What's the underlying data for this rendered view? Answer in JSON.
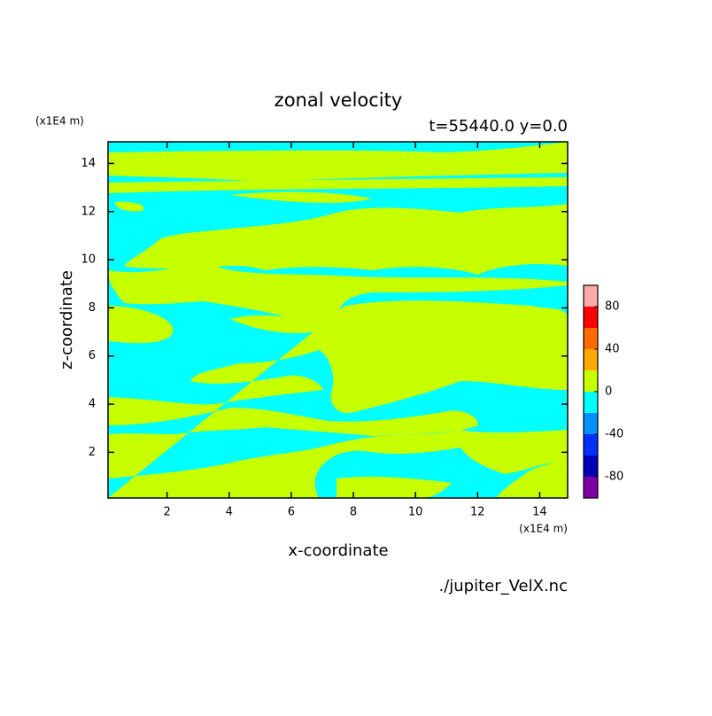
{
  "chart_data": {
    "type": "contour",
    "title": "zonal velocity",
    "subtitle": "t=55440.0 y=0.0",
    "x_label": "x-coordinate",
    "y_label": "z-coordinate",
    "x_unit": "(x1E4 m)",
    "y_unit": "(x1E4 m)",
    "source": "./jupiter_VelX.nc",
    "xlim": [
      0.1,
      14.9
    ],
    "ylim": [
      0.1,
      14.9
    ],
    "xticks": [
      2,
      4,
      6,
      8,
      10,
      12,
      14
    ],
    "yticks": [
      2,
      4,
      6,
      8,
      10,
      12,
      14
    ],
    "colorbar": {
      "lim": [
        -100,
        100
      ],
      "levels": [
        -100,
        -80,
        -60,
        -40,
        -20,
        0,
        20,
        40,
        60,
        80,
        100
      ],
      "colors": [
        "#8000a8",
        "#0000b8",
        "#0030ff",
        "#0090ff",
        "#00ffff",
        "#c8ff00",
        "#ffa800",
        "#ff6a00",
        "#ff0000",
        "#ffaaaa"
      ],
      "ticks": [
        -80,
        -40,
        0,
        40,
        80
      ]
    }
  }
}
